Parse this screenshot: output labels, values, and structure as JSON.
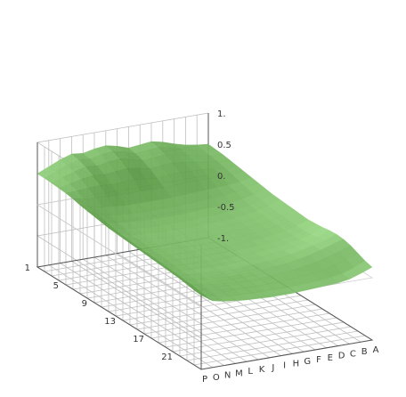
{
  "chart_data": {
    "type": "surface",
    "title": "",
    "x_axis": {
      "label": "",
      "categories": [
        "A",
        "B",
        "C",
        "D",
        "E",
        "F",
        "G",
        "H",
        "I",
        "J",
        "K",
        "L",
        "M",
        "N",
        "O",
        "P"
      ]
    },
    "y_axis": {
      "label": "",
      "tick_labels": [
        "1",
        "5",
        "9",
        "13",
        "17",
        "21"
      ],
      "range": [
        1,
        24
      ]
    },
    "z_axis": {
      "label": "",
      "tick_labels": [
        "1.",
        "0.5",
        "0.",
        "-0.5",
        "-1."
      ],
      "range": [
        -1,
        1
      ]
    },
    "grid": true,
    "colors": {
      "surface": "#7fbf6a",
      "surface_light": "#a6d78f",
      "surface_dark": "#4e8f3c",
      "grid": "#bfbfbf",
      "axis": "#555555"
    },
    "surface_levels": [
      [
        0.5,
        0.49,
        0.48,
        0.46,
        0.44,
        0.42,
        0.4,
        0.38,
        0.36,
        0.34,
        0.33,
        0.32,
        0.31,
        0.3,
        0.29,
        0.3,
        0.31,
        0.33,
        0.34,
        0.33,
        0.3,
        0.25,
        0.2,
        0.17
      ],
      [
        0.52,
        0.5,
        0.48,
        0.46,
        0.43,
        0.4,
        0.36,
        0.33,
        0.3,
        0.28,
        0.26,
        0.25,
        0.24,
        0.23,
        0.22,
        0.22,
        0.23,
        0.25,
        0.27,
        0.28,
        0.24,
        0.18,
        0.12,
        0.1
      ],
      [
        0.55,
        0.54,
        0.52,
        0.49,
        0.45,
        0.4,
        0.34,
        0.3,
        0.26,
        0.23,
        0.21,
        0.2,
        0.19,
        0.18,
        0.17,
        0.17,
        0.18,
        0.2,
        0.22,
        0.22,
        0.18,
        0.12,
        0.06,
        0.04
      ],
      [
        0.6,
        0.58,
        0.55,
        0.52,
        0.47,
        0.4,
        0.33,
        0.28,
        0.23,
        0.2,
        0.18,
        0.17,
        0.16,
        0.15,
        0.14,
        0.14,
        0.15,
        0.16,
        0.18,
        0.17,
        0.13,
        0.08,
        0.03,
        0.01
      ],
      [
        0.66,
        0.64,
        0.6,
        0.55,
        0.48,
        0.4,
        0.32,
        0.26,
        0.21,
        0.18,
        0.16,
        0.15,
        0.14,
        0.13,
        0.12,
        0.12,
        0.12,
        0.13,
        0.14,
        0.13,
        0.1,
        0.05,
        0.01,
        0.0
      ],
      [
        0.7,
        0.68,
        0.63,
        0.57,
        0.49,
        0.4,
        0.31,
        0.25,
        0.2,
        0.17,
        0.15,
        0.14,
        0.13,
        0.12,
        0.11,
        0.1,
        0.1,
        0.11,
        0.11,
        0.1,
        0.07,
        0.03,
        0.0,
        -0.01
      ],
      [
        0.68,
        0.66,
        0.62,
        0.56,
        0.48,
        0.39,
        0.3,
        0.24,
        0.19,
        0.16,
        0.14,
        0.13,
        0.12,
        0.11,
        0.1,
        0.09,
        0.09,
        0.09,
        0.09,
        0.08,
        0.05,
        0.02,
        -0.01,
        -0.02
      ],
      [
        0.66,
        0.64,
        0.6,
        0.54,
        0.46,
        0.37,
        0.29,
        0.23,
        0.18,
        0.15,
        0.13,
        0.12,
        0.11,
        0.1,
        0.09,
        0.08,
        0.08,
        0.08,
        0.08,
        0.06,
        0.04,
        0.01,
        -0.02,
        -0.03
      ],
      [
        0.72,
        0.7,
        0.65,
        0.58,
        0.48,
        0.38,
        0.29,
        0.23,
        0.18,
        0.15,
        0.13,
        0.12,
        0.11,
        0.1,
        0.09,
        0.08,
        0.07,
        0.07,
        0.07,
        0.05,
        0.03,
        0.0,
        -0.02,
        -0.03
      ],
      [
        0.76,
        0.74,
        0.69,
        0.61,
        0.5,
        0.39,
        0.29,
        0.23,
        0.18,
        0.15,
        0.13,
        0.12,
        0.11,
        0.1,
        0.09,
        0.08,
        0.07,
        0.06,
        0.06,
        0.05,
        0.02,
        0.0,
        -0.02,
        -0.03
      ],
      [
        0.74,
        0.72,
        0.67,
        0.59,
        0.49,
        0.38,
        0.29,
        0.23,
        0.18,
        0.15,
        0.13,
        0.12,
        0.11,
        0.1,
        0.09,
        0.08,
        0.07,
        0.06,
        0.06,
        0.05,
        0.03,
        0.01,
        -0.01,
        -0.02
      ],
      [
        0.7,
        0.68,
        0.64,
        0.57,
        0.48,
        0.38,
        0.29,
        0.23,
        0.19,
        0.16,
        0.14,
        0.13,
        0.12,
        0.11,
        0.1,
        0.09,
        0.08,
        0.07,
        0.07,
        0.06,
        0.04,
        0.02,
        0.0,
        -0.01
      ],
      [
        0.72,
        0.7,
        0.66,
        0.59,
        0.5,
        0.4,
        0.31,
        0.25,
        0.2,
        0.17,
        0.15,
        0.14,
        0.13,
        0.12,
        0.11,
        0.1,
        0.09,
        0.08,
        0.08,
        0.07,
        0.06,
        0.04,
        0.02,
        0.01
      ],
      [
        0.66,
        0.64,
        0.61,
        0.56,
        0.49,
        0.41,
        0.33,
        0.27,
        0.22,
        0.19,
        0.17,
        0.16,
        0.15,
        0.14,
        0.13,
        0.12,
        0.11,
        0.1,
        0.1,
        0.09,
        0.08,
        0.06,
        0.04,
        0.03
      ],
      [
        0.58,
        0.57,
        0.55,
        0.52,
        0.48,
        0.42,
        0.36,
        0.31,
        0.27,
        0.24,
        0.22,
        0.21,
        0.2,
        0.19,
        0.18,
        0.17,
        0.16,
        0.15,
        0.14,
        0.13,
        0.12,
        0.1,
        0.08,
        0.07
      ],
      [
        0.5,
        0.5,
        0.49,
        0.48,
        0.47,
        0.45,
        0.42,
        0.4,
        0.38,
        0.36,
        0.34,
        0.33,
        0.32,
        0.31,
        0.3,
        0.29,
        0.28,
        0.27,
        0.26,
        0.25,
        0.24,
        0.22,
        0.2,
        0.19
      ]
    ]
  }
}
